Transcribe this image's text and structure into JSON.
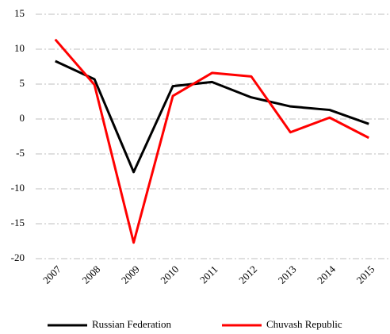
{
  "chart_data": {
    "type": "line",
    "categories": [
      "2007",
      "2008",
      "2009",
      "2010",
      "2011",
      "2012",
      "2013",
      "2014",
      "2015"
    ],
    "series": [
      {
        "name": "Russian Federation",
        "color": "#000000",
        "values": [
          8.3,
          5.7,
          -7.6,
          4.7,
          5.3,
          3.1,
          1.8,
          1.3,
          -0.7
        ]
      },
      {
        "name": "Chuvash Republic",
        "color": "#ff0000",
        "values": [
          11.4,
          4.9,
          -17.7,
          3.3,
          6.6,
          6.1,
          -1.9,
          0.2,
          -2.7
        ]
      }
    ],
    "ylim": [
      -20,
      15
    ],
    "yticks": [
      -20,
      -15,
      -10,
      -5,
      0,
      5,
      10,
      15
    ],
    "grid": true,
    "legend": "bottom"
  }
}
